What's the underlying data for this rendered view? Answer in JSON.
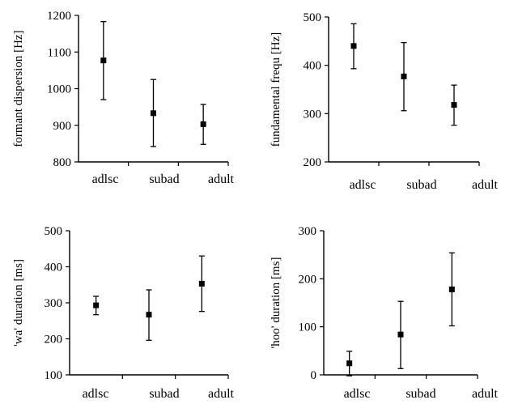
{
  "chart_data": [
    {
      "type": "scatter",
      "error_bars": true,
      "categories": [
        "adlsc",
        "subad",
        "adult"
      ],
      "ylabel": "formant dispersion [Hz]",
      "ylim": [
        800,
        1200
      ],
      "yticks": [
        800,
        900,
        1000,
        1100,
        1200
      ],
      "series": [
        {
          "values": [
            1077,
            933,
            903
          ],
          "low": [
            970,
            842,
            848
          ],
          "high": [
            1183,
            1025,
            957
          ]
        }
      ]
    },
    {
      "type": "scatter",
      "error_bars": true,
      "categories": [
        "adlsc",
        "subad",
        "adult"
      ],
      "ylabel": "fundamental frequ [Hz]",
      "ylim": [
        200,
        500
      ],
      "yticks": [
        200,
        300,
        400,
        500
      ],
      "series": [
        {
          "values": [
            440,
            377,
            318
          ],
          "low": [
            393,
            306,
            276
          ],
          "high": [
            486,
            447,
            359
          ]
        }
      ]
    },
    {
      "type": "scatter",
      "error_bars": true,
      "categories": [
        "adlsc",
        "subad",
        "adult"
      ],
      "ylabel": "'wa' duration [ms]",
      "ylim": [
        100,
        500
      ],
      "yticks": [
        100,
        200,
        300,
        400,
        500
      ],
      "series": [
        {
          "values": [
            293,
            267,
            353
          ],
          "low": [
            267,
            196,
            276
          ],
          "high": [
            318,
            336,
            430
          ]
        }
      ]
    },
    {
      "type": "scatter",
      "error_bars": true,
      "categories": [
        "adlsc",
        "subad",
        "adult"
      ],
      "ylabel": "'hoo' duration [ms]",
      "ylim": [
        0,
        300
      ],
      "yticks": [
        0,
        100,
        200,
        300
      ],
      "series": [
        {
          "values": [
            24,
            84,
            178
          ],
          "low": [
            -2,
            13,
            102
          ],
          "high": [
            49,
            153,
            254
          ]
        }
      ]
    }
  ]
}
